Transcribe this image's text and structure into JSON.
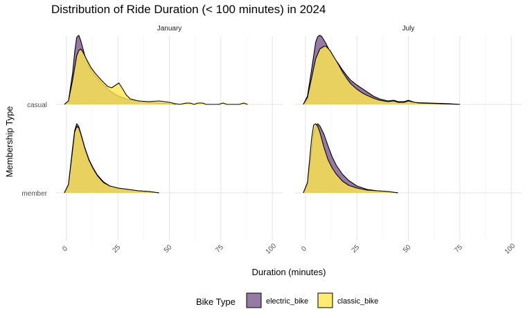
{
  "chart_data": {
    "type": "ridgeline",
    "title": "Distribution of Ride Duration (< 100 minutes) in 2024",
    "xlabel": "Duration (minutes)",
    "ylabel": "Membership Type",
    "facets": [
      "January",
      "July"
    ],
    "xlim": [
      -5,
      105
    ],
    "x_ticks": [
      0,
      25,
      50,
      75,
      100
    ],
    "rows": [
      "member",
      "casual"
    ],
    "legend": {
      "title": "Bike Type",
      "position": "bottom",
      "entries": [
        {
          "name": "electric_bike",
          "color": "#7b5a8c"
        },
        {
          "name": "classic_bike",
          "color": "#fde74c"
        }
      ]
    },
    "series": [
      {
        "facet": "January",
        "row": "casual",
        "bike": "electric_bike",
        "x": [
          -1,
          1,
          3,
          4,
          5,
          6,
          7,
          9,
          11,
          13,
          15,
          18,
          21,
          24,
          27,
          30,
          35,
          40,
          45,
          50,
          53
        ],
        "density": [
          0,
          0.05,
          0.45,
          0.75,
          0.97,
          1.0,
          0.92,
          0.7,
          0.55,
          0.45,
          0.38,
          0.28,
          0.2,
          0.14,
          0.1,
          0.07,
          0.05,
          0.03,
          0.02,
          0.01,
          0
        ]
      },
      {
        "facet": "January",
        "row": "casual",
        "bike": "classic_bike",
        "x": [
          -1,
          1,
          3,
          5,
          6,
          7,
          8,
          10,
          12,
          14,
          17,
          20,
          22,
          24,
          25.5,
          27,
          29,
          31,
          35,
          40,
          45,
          50,
          53,
          55,
          58,
          60,
          62,
          64,
          66,
          68,
          70,
          74,
          76,
          78,
          84,
          86,
          88
        ],
        "density": [
          0,
          0.05,
          0.35,
          0.7,
          0.78,
          0.8,
          0.76,
          0.64,
          0.53,
          0.45,
          0.35,
          0.26,
          0.24,
          0.28,
          0.31,
          0.24,
          0.14,
          0.08,
          0.05,
          0.04,
          0.05,
          0.03,
          0.01,
          0,
          0.018,
          0.02,
          0,
          0.02,
          0.02,
          0,
          0,
          0,
          0.02,
          0,
          0,
          0.02,
          0
        ]
      },
      {
        "facet": "January",
        "row": "member",
        "bike": "electric_bike",
        "x": [
          -1,
          1,
          3,
          4,
          5,
          6,
          7,
          9,
          11,
          13,
          15,
          18,
          21,
          25,
          30,
          35,
          40,
          45
        ],
        "density": [
          0,
          0.12,
          0.65,
          0.9,
          1.0,
          0.96,
          0.86,
          0.65,
          0.48,
          0.36,
          0.26,
          0.16,
          0.1,
          0.07,
          0.05,
          0.03,
          0.02,
          0
        ]
      },
      {
        "facet": "January",
        "row": "member",
        "bike": "classic_bike",
        "x": [
          -1,
          1,
          3,
          4,
          5,
          6,
          7,
          9,
          11,
          13,
          15,
          18,
          21,
          25,
          30,
          35,
          40,
          45
        ],
        "density": [
          0,
          0.12,
          0.62,
          0.88,
          0.96,
          0.94,
          0.85,
          0.64,
          0.47,
          0.35,
          0.25,
          0.15,
          0.1,
          0.07,
          0.05,
          0.03,
          0.02,
          0
        ]
      },
      {
        "facet": "July",
        "row": "casual",
        "bike": "electric_bike",
        "x": [
          -1,
          1,
          3,
          5,
          6,
          7,
          8,
          10,
          12,
          14,
          16,
          18,
          20,
          22,
          25,
          28,
          30,
          33,
          36,
          40,
          43,
          45,
          48,
          50,
          53,
          55,
          60,
          65,
          70,
          75
        ],
        "density": [
          0,
          0.12,
          0.5,
          0.9,
          0.98,
          1.0,
          0.98,
          0.88,
          0.76,
          0.67,
          0.59,
          0.5,
          0.42,
          0.35,
          0.28,
          0.22,
          0.18,
          0.12,
          0.08,
          0.05,
          0.06,
          0.04,
          0.04,
          0.06,
          0.03,
          0.025,
          0.02,
          0.015,
          0.01,
          0
        ]
      },
      {
        "facet": "July",
        "row": "casual",
        "bike": "classic_bike",
        "x": [
          -1,
          1,
          3,
          5,
          7,
          9,
          10,
          12,
          14,
          16,
          18,
          20,
          22,
          25,
          28,
          30,
          33,
          36,
          40,
          43,
          45,
          48,
          50,
          53,
          55,
          60,
          65,
          70,
          75
        ],
        "density": [
          0,
          0.1,
          0.38,
          0.66,
          0.8,
          0.84,
          0.84,
          0.78,
          0.68,
          0.58,
          0.47,
          0.38,
          0.3,
          0.22,
          0.16,
          0.13,
          0.09,
          0.06,
          0.04,
          0.05,
          0.03,
          0.03,
          0.05,
          0.03,
          0.02,
          0.015,
          0.01,
          0.005,
          0
        ]
      },
      {
        "facet": "July",
        "row": "member",
        "bike": "electric_bike",
        "x": [
          -1,
          1,
          3,
          4,
          5,
          6,
          7,
          9,
          11,
          13,
          15,
          18,
          21,
          25,
          30,
          35,
          40,
          45
        ],
        "density": [
          0,
          0.12,
          0.6,
          0.85,
          0.96,
          1.0,
          0.97,
          0.85,
          0.68,
          0.52,
          0.4,
          0.27,
          0.18,
          0.1,
          0.05,
          0.03,
          0.02,
          0
        ]
      },
      {
        "facet": "July",
        "row": "member",
        "bike": "classic_bike",
        "x": [
          -1,
          1,
          3,
          4,
          5,
          6,
          7,
          9,
          11,
          13,
          15,
          18,
          21,
          25,
          30,
          35,
          40,
          45
        ],
        "density": [
          0,
          0.15,
          0.78,
          0.98,
          1.0,
          0.96,
          0.88,
          0.66,
          0.48,
          0.36,
          0.27,
          0.17,
          0.11,
          0.07,
          0.04,
          0.03,
          0.02,
          0
        ]
      }
    ]
  }
}
